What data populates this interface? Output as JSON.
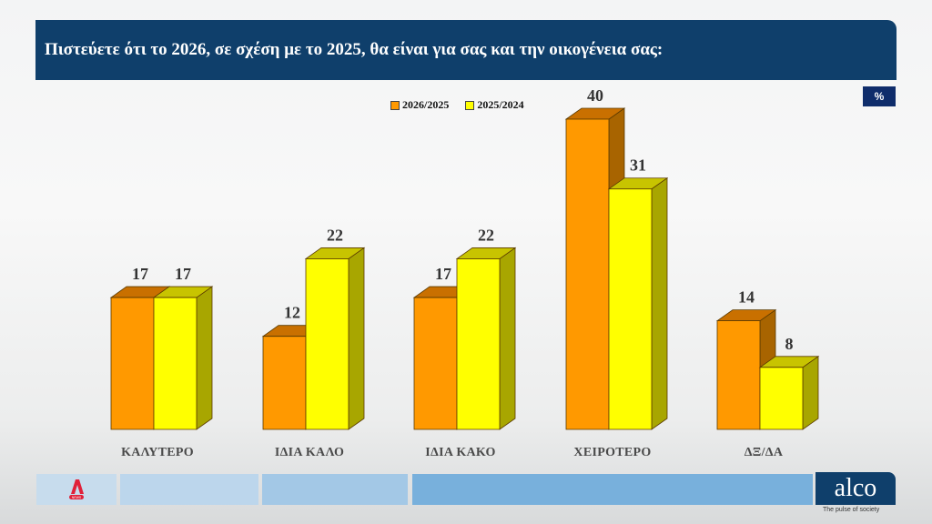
{
  "header": {
    "title": "Πιστεύετε ότι το 2026, σε σχέση με το 2025, θα είναι για σας και την οικογένεια σας:",
    "unit_badge": "%"
  },
  "legend": [
    {
      "label": "2026/2025",
      "color": "#ff9900"
    },
    {
      "label": "2025/2024",
      "color": "#ffff00"
    }
  ],
  "chart_data": {
    "type": "bar",
    "title": "Πιστεύετε ότι το 2026, σε σχέση με το 2025, θα είναι για σας και την οικογένεια σας:",
    "xlabel": "",
    "ylabel": "%",
    "categories": [
      "ΚΑΛΥΤΕΡΟ",
      "ΙΔΙΑ ΚΑΛΟ",
      "ΙΔΙΑ ΚΑΚΟ",
      "ΧΕΙΡΟΤΕΡΟ",
      "ΔΞ/ΔΑ"
    ],
    "series": [
      {
        "name": "2026/2025",
        "color": "#ff9900",
        "values": [
          17,
          12,
          17,
          40,
          14
        ]
      },
      {
        "name": "2025/2024",
        "color": "#ffff00",
        "values": [
          17,
          22,
          22,
          31,
          8
        ]
      }
    ],
    "ylim": [
      0,
      40
    ],
    "grid": false,
    "legend_position": "top",
    "style": "3d-column",
    "data_labels": true
  },
  "footer": {
    "left_logo": "A",
    "left_logo_sub": "NEWS",
    "right_logo": "alco",
    "right_tagline": "The pulse of society"
  }
}
